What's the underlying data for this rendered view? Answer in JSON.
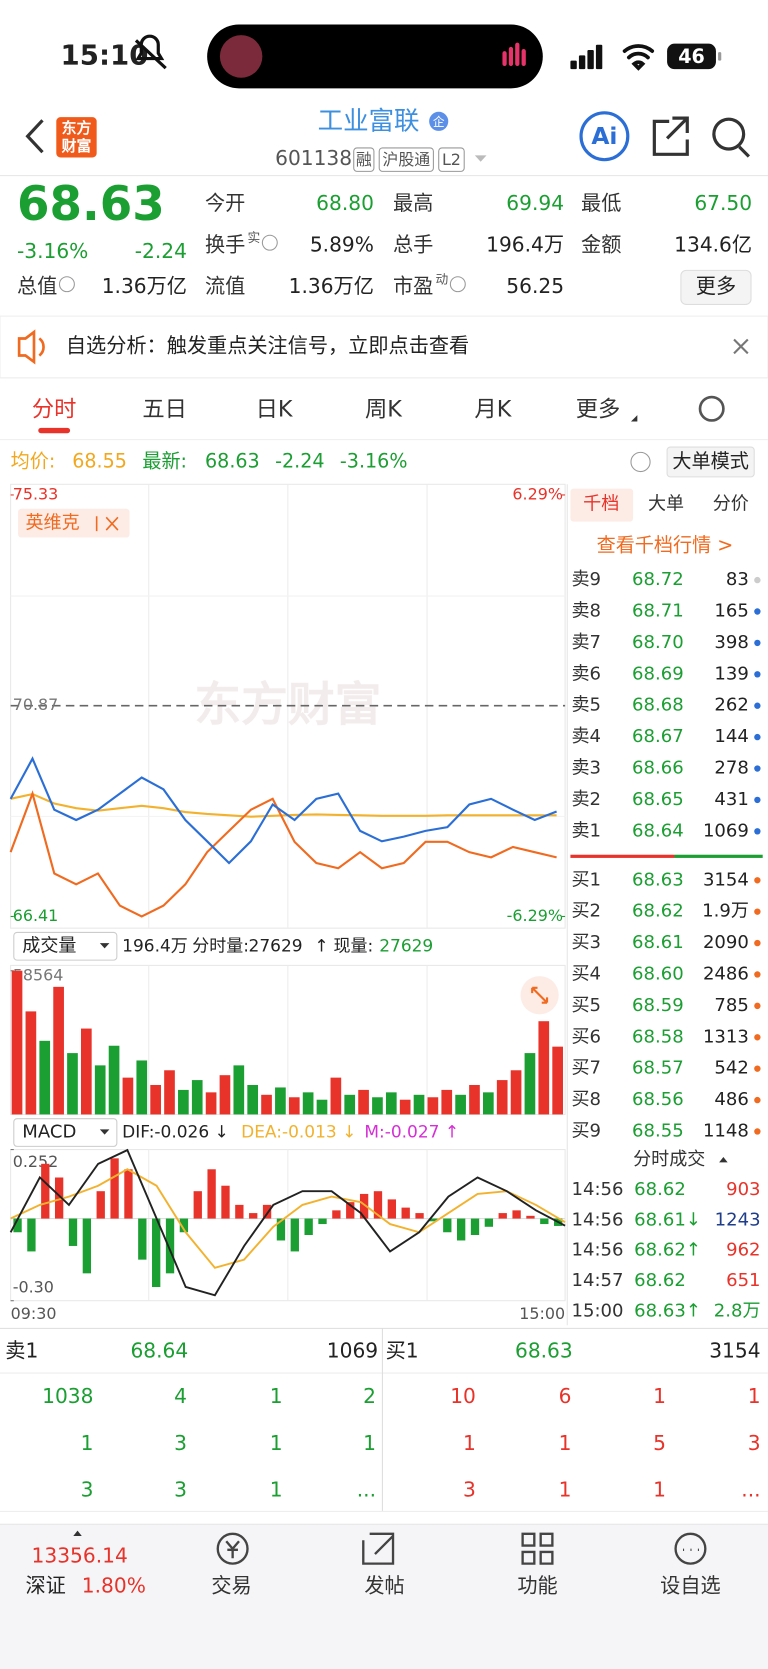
{
  "status": {
    "time": "15:10",
    "battery": "46"
  },
  "header": {
    "logo": [
      "东方",
      "财富"
    ],
    "title": "工业富联",
    "badge": "企",
    "code": "601138",
    "tags": [
      "融",
      "沪股通",
      "L2"
    ],
    "ai": "Ai"
  },
  "quote": {
    "price": "68.63",
    "change_pct": "-3.16%",
    "change": "-2.24",
    "stats": [
      {
        "label": "今开",
        "value": "68.80"
      },
      {
        "label": "最高",
        "value": "69.94"
      },
      {
        "label": "最低",
        "value": "67.50"
      },
      {
        "label": "换手",
        "sup": "实",
        "value": "5.89%"
      },
      {
        "label": "总手",
        "value": "196.4万"
      },
      {
        "label": "金额",
        "value": "134.6亿"
      },
      {
        "label": "总值",
        "value": "1.36万亿"
      },
      {
        "label": "流值",
        "value": "1.36万亿"
      },
      {
        "label": "市盈",
        "sup": "动",
        "value": "56.25"
      }
    ],
    "more": "更多"
  },
  "banner": "自选分析：触发重点关注信号，立即点击查看",
  "tabs": [
    "分时",
    "五日",
    "日K",
    "周K",
    "月K",
    "更多"
  ],
  "info": {
    "avg_label": "均价:",
    "avg": "68.55",
    "last_label": "最新:",
    "last": "68.63",
    "change": "-2.24",
    "change_pct": "-3.16%",
    "mode": "大单模式"
  },
  "intraday": {
    "type": "line",
    "ylim": [
      66.41,
      75.33
    ],
    "yticks": [
      66.41,
      70.87,
      75.33
    ],
    "pct_ticks": [
      {
        "value": -6.29,
        "label": "-6.29%"
      },
      {
        "value": 6.29,
        "label": "6.29%"
      }
    ],
    "watermark": "东方财富",
    "price": {
      "color": "#2b6fd6",
      "values": [
        68.9,
        69.75,
        68.67,
        68.45,
        68.67,
        69.01,
        69.35,
        69.1,
        68.45,
        68.0,
        67.54,
        68.0,
        68.78,
        68.45,
        68.9,
        69.01,
        68.22,
        68.0,
        68.1,
        68.22,
        68.3,
        68.78,
        68.9,
        68.67,
        68.45,
        68.63
      ]
    },
    "avg": {
      "color": "#f2b22e",
      "values": [
        68.9,
        69.0,
        68.8,
        68.7,
        68.65,
        68.7,
        68.75,
        68.7,
        68.62,
        68.58,
        68.55,
        68.52,
        68.54,
        68.56,
        68.57,
        68.56,
        68.55,
        68.54,
        68.54,
        68.54,
        68.55,
        68.55,
        68.55,
        68.55,
        68.55,
        68.55
      ]
    },
    "compare": {
      "name": "英维克",
      "color": "#f06a1f",
      "values": [
        67.77,
        69.01,
        67.32,
        67.09,
        67.32,
        66.64,
        66.41,
        66.64,
        67.09,
        67.77,
        68.22,
        68.67,
        68.9,
        67.99,
        67.54,
        67.43,
        67.77,
        67.43,
        67.54,
        67.99,
        67.99,
        67.77,
        67.66,
        67.88,
        67.77,
        67.66
      ]
    }
  },
  "volume": {
    "type": "bar",
    "label": "成交量",
    "total": "196.4万",
    "period_label": "分时量:",
    "period": "27629",
    "arrow": "↑",
    "current_label": "现量:",
    "current": "27629",
    "ylim": [
      0,
      58564
    ],
    "yticks": [
      58564
    ],
    "values": [
      58564,
      42000,
      30000,
      52000,
      25000,
      35000,
      20000,
      28000,
      15000,
      22000,
      12000,
      18000,
      10000,
      14000,
      9000,
      16000,
      20000,
      12000,
      8000,
      11000,
      7000,
      9000,
      6000,
      15000,
      8000,
      10000,
      7000,
      9000,
      6000,
      8000,
      7000,
      10000,
      8000,
      12000,
      9000,
      14000,
      18000,
      25000,
      38000,
      27629
    ],
    "colors": [
      "#e8332a",
      "#e8332a",
      "#1b9e32",
      "#e8332a",
      "#1b9e32",
      "#e8332a",
      "#1b9e32",
      "#1b9e32",
      "#e8332a",
      "#1b9e32",
      "#e8332a",
      "#e8332a",
      "#1b9e32",
      "#1b9e32",
      "#e8332a",
      "#e8332a",
      "#1b9e32",
      "#1b9e32",
      "#e8332a",
      "#1b9e32",
      "#e8332a",
      "#1b9e32",
      "#1b9e32",
      "#e8332a",
      "#1b9e32",
      "#e8332a",
      "#1b9e32",
      "#1b9e32",
      "#e8332a",
      "#1b9e32",
      "#e8332a",
      "#e8332a",
      "#1b9e32",
      "#e8332a",
      "#1b9e32",
      "#e8332a",
      "#e8332a",
      "#1b9e32",
      "#e8332a",
      "#e8332a"
    ]
  },
  "macd": {
    "type": "bar",
    "label": "MACD",
    "dif_label": "DIF:-0.026 ↓",
    "dea_label": "DEA:-0.013 ↓",
    "m_label": "M:-0.027 ↑",
    "ylim": [
      -0.3,
      0.252
    ],
    "yticks": [
      {
        "value": -0.3,
        "label": "-0.30"
      },
      0.252
    ],
    "xticks": [
      "09:30",
      "15:00"
    ],
    "values": [
      -0.05,
      -0.12,
      0.2,
      0.15,
      -0.1,
      -0.2,
      0.1,
      0.22,
      0.18,
      -0.15,
      -0.25,
      -0.2,
      -0.05,
      0.1,
      0.18,
      0.12,
      0.05,
      0.02,
      0.05,
      -0.08,
      -0.12,
      -0.06,
      -0.02,
      0.03,
      0.06,
      0.09,
      0.1,
      0.07,
      0.04,
      0.02,
      -0.01,
      -0.05,
      -0.08,
      -0.06,
      -0.03,
      0.02,
      0.03,
      0.01,
      -0.02,
      -0.027
    ],
    "dif": {
      "color": "#222222",
      "values": [
        -0.05,
        0.15,
        0.05,
        0.2,
        0.25,
        0.0,
        -0.25,
        -0.28,
        -0.1,
        0.05,
        0.1,
        0.1,
        0.02,
        -0.12,
        -0.05,
        0.08,
        0.15,
        0.1,
        0.03,
        -0.026
      ]
    },
    "dea": {
      "color": "#f2b22e",
      "values": [
        0.0,
        0.05,
        0.08,
        0.12,
        0.18,
        0.12,
        -0.05,
        -0.18,
        -0.15,
        -0.03,
        0.05,
        0.08,
        0.06,
        -0.02,
        -0.05,
        0.02,
        0.09,
        0.1,
        0.05,
        -0.013
      ]
    }
  },
  "book": {
    "tabs": [
      "千档",
      "大单",
      "分价"
    ],
    "link": "查看千档行情 >",
    "asks": [
      {
        "label": "卖9",
        "price": "68.72",
        "volume": "83",
        "dot": "#cccccc"
      },
      {
        "label": "卖8",
        "price": "68.71",
        "volume": "165",
        "dot": "#2b6fd6"
      },
      {
        "label": "卖7",
        "price": "68.70",
        "volume": "398",
        "dot": "#2b6fd6"
      },
      {
        "label": "卖6",
        "price": "68.69",
        "volume": "139",
        "dot": "#2b6fd6"
      },
      {
        "label": "卖5",
        "price": "68.68",
        "volume": "262",
        "dot": "#2b6fd6"
      },
      {
        "label": "卖4",
        "price": "68.67",
        "volume": "144",
        "dot": "#2b6fd6"
      },
      {
        "label": "卖3",
        "price": "68.66",
        "volume": "278",
        "dot": "#2b6fd6"
      },
      {
        "label": "卖2",
        "price": "68.65",
        "volume": "431",
        "dot": "#2b6fd6"
      },
      {
        "label": "卖1",
        "price": "68.64",
        "volume": "1069",
        "dot": "#2b6fd6"
      }
    ],
    "bids": [
      {
        "label": "买1",
        "price": "68.63",
        "volume": "3154",
        "dot": "#f06a1f"
      },
      {
        "label": "买2",
        "price": "68.62",
        "volume": "1.9万",
        "dot": "#f06a1f"
      },
      {
        "label": "买3",
        "price": "68.61",
        "volume": "2090",
        "dot": "#f06a1f"
      },
      {
        "label": "买4",
        "price": "68.60",
        "volume": "2486",
        "dot": "#f06a1f"
      },
      {
        "label": "买5",
        "price": "68.59",
        "volume": "785",
        "dot": "#f06a1f"
      },
      {
        "label": "买6",
        "price": "68.58",
        "volume": "1313",
        "dot": "#f06a1f"
      },
      {
        "label": "买7",
        "price": "68.57",
        "volume": "542",
        "dot": "#f06a1f"
      },
      {
        "label": "买8",
        "price": "68.56",
        "volume": "486",
        "dot": "#f06a1f"
      },
      {
        "label": "买9",
        "price": "68.55",
        "volume": "1148",
        "dot": "#f06a1f"
      }
    ]
  },
  "trades": {
    "title": "分时成交",
    "rows": [
      {
        "time": "14:56",
        "price": "68.62",
        "volume": "903",
        "color": "#e8332a"
      },
      {
        "time": "14:56",
        "price": "68.61↓",
        "volume": "1243",
        "color": "#1f3d8a"
      },
      {
        "time": "14:56",
        "price": "68.62↑",
        "volume": "962",
        "color": "#e8332a"
      },
      {
        "time": "14:57",
        "price": "68.62",
        "volume": "651",
        "color": "#e8332a"
      },
      {
        "time": "15:00",
        "price": "68.63↑",
        "volume": "2.8万",
        "color": "#1b9e32"
      }
    ]
  },
  "queue": {
    "ask": {
      "label": "卖1",
      "price": "68.64",
      "volume": "1069"
    },
    "bid": {
      "label": "买1",
      "price": "68.63",
      "volume": "3154"
    },
    "ask_rows": [
      [
        "1038",
        "4",
        "1",
        "2"
      ],
      [
        "1",
        "3",
        "1",
        "1"
      ],
      [
        "3",
        "3",
        "1",
        "..."
      ]
    ],
    "bid_rows": [
      [
        "10",
        "6",
        "1",
        "1"
      ],
      [
        "1",
        "1",
        "5",
        "3"
      ],
      [
        "3",
        "1",
        "1",
        "..."
      ]
    ]
  },
  "nav": {
    "index": "13356.14",
    "market": "深证",
    "market_change": "1.80%",
    "items": [
      "交易",
      "发帖",
      "功能",
      "设自选"
    ]
  }
}
